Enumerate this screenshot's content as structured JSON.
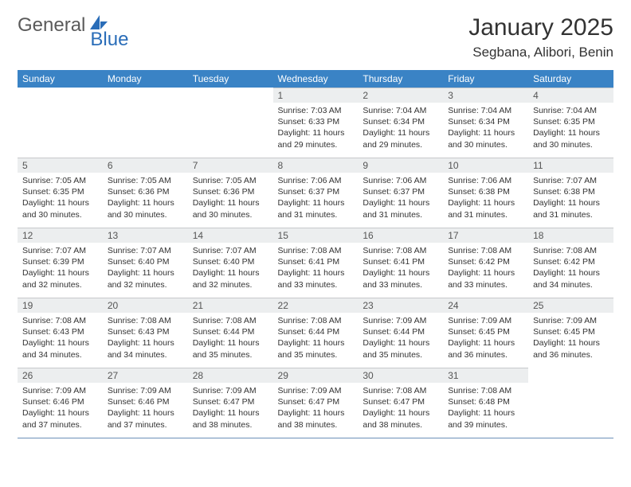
{
  "logo": {
    "textA": "General",
    "textB": "Blue",
    "color_general": "#5a5a5a",
    "color_blue": "#2a6db8",
    "sail_color": "#2a6db8"
  },
  "title": "January 2025",
  "location": "Segbana, Alibori, Benin",
  "colors": {
    "header_bg": "#3a83c5",
    "header_fg": "#ffffff",
    "daybar_bg": "#eceeef",
    "row_sep": "#6b8fb8",
    "text": "#333333"
  },
  "weekdays": [
    "Sunday",
    "Monday",
    "Tuesday",
    "Wednesday",
    "Thursday",
    "Friday",
    "Saturday"
  ],
  "weeks": [
    [
      null,
      null,
      null,
      {
        "n": "1",
        "sr": "7:03 AM",
        "ss": "6:33 PM",
        "dl": "11 hours and 29 minutes."
      },
      {
        "n": "2",
        "sr": "7:04 AM",
        "ss": "6:34 PM",
        "dl": "11 hours and 29 minutes."
      },
      {
        "n": "3",
        "sr": "7:04 AM",
        "ss": "6:34 PM",
        "dl": "11 hours and 30 minutes."
      },
      {
        "n": "4",
        "sr": "7:04 AM",
        "ss": "6:35 PM",
        "dl": "11 hours and 30 minutes."
      }
    ],
    [
      {
        "n": "5",
        "sr": "7:05 AM",
        "ss": "6:35 PM",
        "dl": "11 hours and 30 minutes."
      },
      {
        "n": "6",
        "sr": "7:05 AM",
        "ss": "6:36 PM",
        "dl": "11 hours and 30 minutes."
      },
      {
        "n": "7",
        "sr": "7:05 AM",
        "ss": "6:36 PM",
        "dl": "11 hours and 30 minutes."
      },
      {
        "n": "8",
        "sr": "7:06 AM",
        "ss": "6:37 PM",
        "dl": "11 hours and 31 minutes."
      },
      {
        "n": "9",
        "sr": "7:06 AM",
        "ss": "6:37 PM",
        "dl": "11 hours and 31 minutes."
      },
      {
        "n": "10",
        "sr": "7:06 AM",
        "ss": "6:38 PM",
        "dl": "11 hours and 31 minutes."
      },
      {
        "n": "11",
        "sr": "7:07 AM",
        "ss": "6:38 PM",
        "dl": "11 hours and 31 minutes."
      }
    ],
    [
      {
        "n": "12",
        "sr": "7:07 AM",
        "ss": "6:39 PM",
        "dl": "11 hours and 32 minutes."
      },
      {
        "n": "13",
        "sr": "7:07 AM",
        "ss": "6:40 PM",
        "dl": "11 hours and 32 minutes."
      },
      {
        "n": "14",
        "sr": "7:07 AM",
        "ss": "6:40 PM",
        "dl": "11 hours and 32 minutes."
      },
      {
        "n": "15",
        "sr": "7:08 AM",
        "ss": "6:41 PM",
        "dl": "11 hours and 33 minutes."
      },
      {
        "n": "16",
        "sr": "7:08 AM",
        "ss": "6:41 PM",
        "dl": "11 hours and 33 minutes."
      },
      {
        "n": "17",
        "sr": "7:08 AM",
        "ss": "6:42 PM",
        "dl": "11 hours and 33 minutes."
      },
      {
        "n": "18",
        "sr": "7:08 AM",
        "ss": "6:42 PM",
        "dl": "11 hours and 34 minutes."
      }
    ],
    [
      {
        "n": "19",
        "sr": "7:08 AM",
        "ss": "6:43 PM",
        "dl": "11 hours and 34 minutes."
      },
      {
        "n": "20",
        "sr": "7:08 AM",
        "ss": "6:43 PM",
        "dl": "11 hours and 34 minutes."
      },
      {
        "n": "21",
        "sr": "7:08 AM",
        "ss": "6:44 PM",
        "dl": "11 hours and 35 minutes."
      },
      {
        "n": "22",
        "sr": "7:08 AM",
        "ss": "6:44 PM",
        "dl": "11 hours and 35 minutes."
      },
      {
        "n": "23",
        "sr": "7:09 AM",
        "ss": "6:44 PM",
        "dl": "11 hours and 35 minutes."
      },
      {
        "n": "24",
        "sr": "7:09 AM",
        "ss": "6:45 PM",
        "dl": "11 hours and 36 minutes."
      },
      {
        "n": "25",
        "sr": "7:09 AM",
        "ss": "6:45 PM",
        "dl": "11 hours and 36 minutes."
      }
    ],
    [
      {
        "n": "26",
        "sr": "7:09 AM",
        "ss": "6:46 PM",
        "dl": "11 hours and 37 minutes."
      },
      {
        "n": "27",
        "sr": "7:09 AM",
        "ss": "6:46 PM",
        "dl": "11 hours and 37 minutes."
      },
      {
        "n": "28",
        "sr": "7:09 AM",
        "ss": "6:47 PM",
        "dl": "11 hours and 38 minutes."
      },
      {
        "n": "29",
        "sr": "7:09 AM",
        "ss": "6:47 PM",
        "dl": "11 hours and 38 minutes."
      },
      {
        "n": "30",
        "sr": "7:08 AM",
        "ss": "6:47 PM",
        "dl": "11 hours and 38 minutes."
      },
      {
        "n": "31",
        "sr": "7:08 AM",
        "ss": "6:48 PM",
        "dl": "11 hours and 39 minutes."
      },
      null
    ]
  ],
  "labels": {
    "sunrise": "Sunrise:",
    "sunset": "Sunset:",
    "daylight": "Daylight:"
  }
}
